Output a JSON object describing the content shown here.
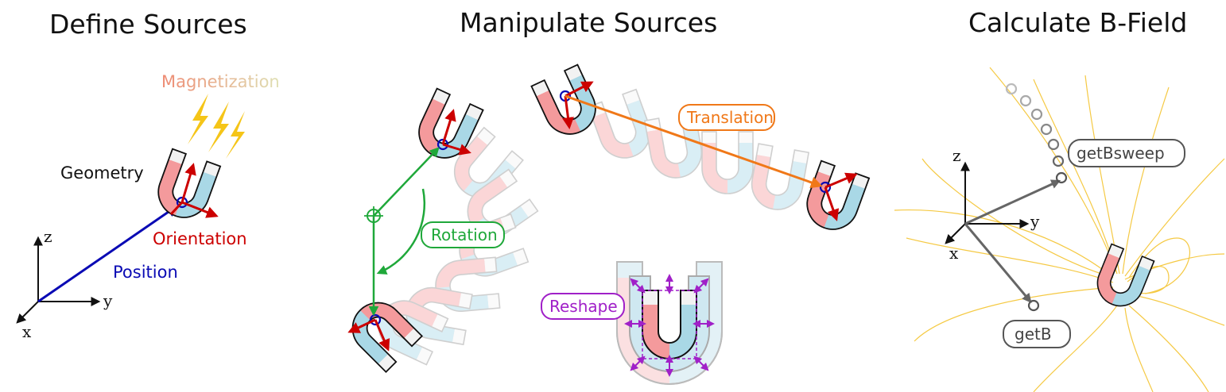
{
  "titles": {
    "define": "Define Sources",
    "manipulate": "Manipulate Sources",
    "calculate": "Calculate B-Field"
  },
  "labels": {
    "magnetization": "Magnetization",
    "geometry": "Geometry",
    "orientation": "Orientation",
    "position": "Position",
    "translation": "Translation",
    "rotation": "Rotation",
    "reshape": "Reshape",
    "getBsweep": "getBsweep",
    "getB": "getB"
  },
  "axes": {
    "x": "x",
    "y": "y",
    "z": "z"
  },
  "colors": {
    "magnet_north": "#f49a9c",
    "magnet_south": "#a9d8e6",
    "magnet_tip": "#f2f2f2",
    "orientation_red": "#cc0000",
    "position_blue": "#0a0ab4",
    "magnetization_orange": "#f4a460",
    "bolt_yellow": "#f5c518",
    "translation_orange": "#f07818",
    "rotation_green": "#1fa83a",
    "reshape_purple": "#a020c8",
    "sensor_gray": "#666666",
    "field_line_yellow": "#f4c430"
  }
}
